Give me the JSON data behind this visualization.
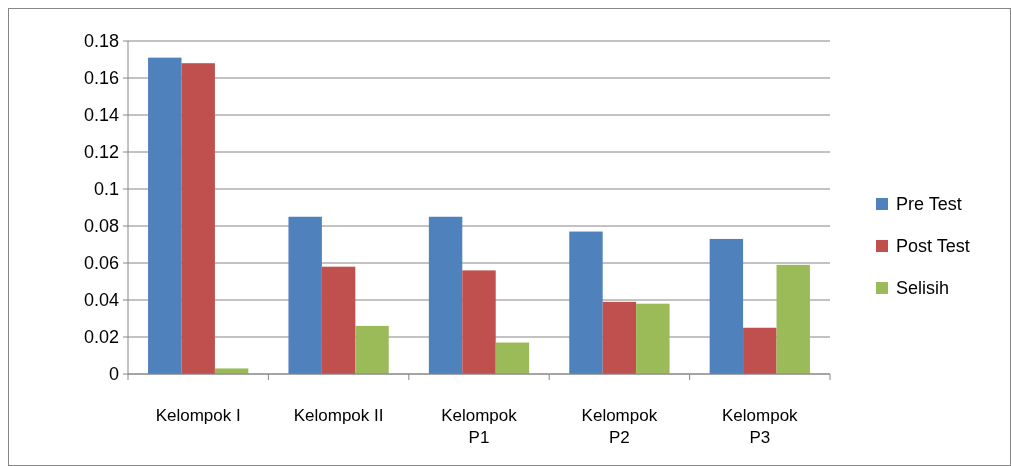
{
  "chart_data": {
    "type": "bar",
    "categories": [
      "Kelompok I",
      "Kelompok II",
      "Kelompok P1",
      "Kelompok P2",
      "Kelompok P3"
    ],
    "series": [
      {
        "name": "Pre Test",
        "color": "#4f81bd",
        "values": [
          0.171,
          0.085,
          0.085,
          0.077,
          0.073
        ]
      },
      {
        "name": "Post Test",
        "color": "#c0504d",
        "values": [
          0.168,
          0.058,
          0.056,
          0.039,
          0.025
        ]
      },
      {
        "name": "Selisih",
        "color": "#9bbb59",
        "values": [
          0.003,
          0.026,
          0.017,
          0.038,
          0.059
        ]
      }
    ],
    "ylim": [
      0,
      0.18
    ],
    "yticks": [
      0,
      0.02,
      0.04,
      0.06,
      0.08,
      {
        "value": 0.1,
        "label": "0.1"
      },
      0.12,
      0.14,
      0.16,
      0.18
    ],
    "grid": "y",
    "legend": "right"
  }
}
